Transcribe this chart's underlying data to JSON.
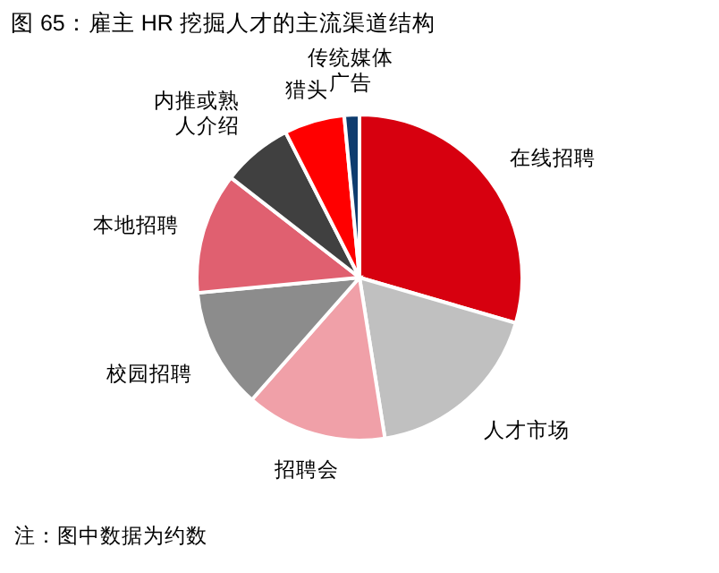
{
  "chart_data": {
    "type": "pie",
    "title": "图 65：雇主 HR 挖掘人才的主流渠道结构",
    "categories": [
      "在线招聘",
      "人才市场",
      "招聘会",
      "校园招聘",
      "本地招聘",
      "内推或熟人介绍",
      "猎头",
      "传统媒体广告"
    ],
    "values": [
      29.5,
      18,
      14,
      12,
      12,
      7,
      6,
      1.5
    ],
    "colors": [
      "#d7000f",
      "#c0c0c0",
      "#f0a0a8",
      "#8c8c8c",
      "#e06070",
      "#404040",
      "#ff0000",
      "#0e3c6e"
    ],
    "annotations": [
      "注：图中数据为约数"
    ]
  }
}
